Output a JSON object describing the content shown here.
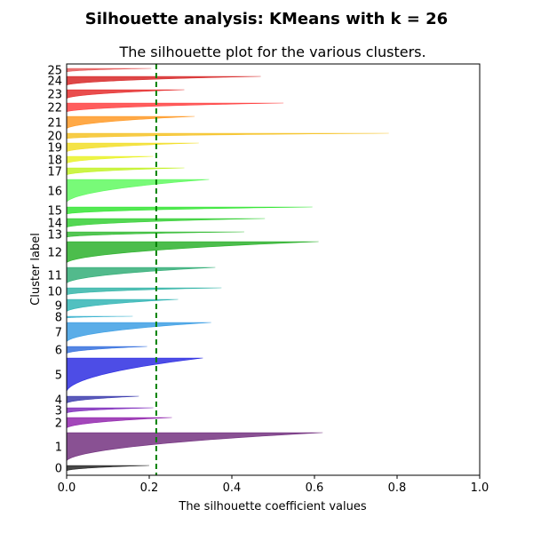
{
  "chart_data": {
    "type": "silhouette",
    "suptitle": "Silhouette analysis: KMeans with k = 26",
    "title": "The silhouette plot for the various clusters.",
    "xlabel": "The silhouette coefficient values",
    "ylabel": "Cluster label",
    "xlim": [
      0.0,
      1.0
    ],
    "x_ticks": [
      "0.0",
      "0.2",
      "0.4",
      "0.6",
      "0.8",
      "1.0"
    ],
    "average_silhouette": 0.217,
    "clusters": [
      {
        "label": "0",
        "max": 0.2,
        "size": 3,
        "color": "#000000"
      },
      {
        "label": "1",
        "max": 0.62,
        "size": 16,
        "color": "#5c0e6a"
      },
      {
        "label": "2",
        "max": 0.255,
        "size": 6,
        "color": "#8000a0"
      },
      {
        "label": "3",
        "max": 0.21,
        "size": 3,
        "color": "#6a0ab2"
      },
      {
        "label": "4",
        "max": 0.175,
        "size": 4,
        "color": "#1a1aa0"
      },
      {
        "label": "5",
        "max": 0.33,
        "size": 19,
        "color": "#0808dd"
      },
      {
        "label": "6",
        "max": 0.195,
        "size": 4,
        "color": "#1258d8"
      },
      {
        "label": "7",
        "max": 0.35,
        "size": 11,
        "color": "#1a8ddf"
      },
      {
        "label": "8",
        "max": 0.16,
        "size": 1,
        "color": "#1aa6c8"
      },
      {
        "label": "9",
        "max": 0.27,
        "size": 7,
        "color": "#0ea8a8"
      },
      {
        "label": "10",
        "max": 0.375,
        "size": 4,
        "color": "#10a89a"
      },
      {
        "label": "11",
        "max": 0.36,
        "size": 9,
        "color": "#0fa060"
      },
      {
        "label": "12",
        "max": 0.61,
        "size": 12,
        "color": "#07a307"
      },
      {
        "label": "13",
        "max": 0.43,
        "size": 3,
        "color": "#10b010"
      },
      {
        "label": "14",
        "max": 0.48,
        "size": 5,
        "color": "#10c810"
      },
      {
        "label": "15",
        "max": 0.595,
        "size": 4,
        "color": "#10e010"
      },
      {
        "label": "16",
        "max": 0.345,
        "size": 13,
        "color": "#44f844"
      },
      {
        "label": "17",
        "max": 0.285,
        "size": 4,
        "color": "#b8f000"
      },
      {
        "label": "18",
        "max": 0.21,
        "size": 4,
        "color": "#e6f000"
      },
      {
        "label": "19",
        "max": 0.32,
        "size": 5,
        "color": "#f0d800"
      },
      {
        "label": "20",
        "max": 0.78,
        "size": 3,
        "color": "#f4b800"
      },
      {
        "label": "21",
        "max": 0.31,
        "size": 7,
        "color": "#ff8800"
      },
      {
        "label": "22",
        "max": 0.525,
        "size": 5,
        "color": "#ff1e1e"
      },
      {
        "label": "23",
        "max": 0.285,
        "size": 5,
        "color": "#e00808"
      },
      {
        "label": "24",
        "max": 0.47,
        "size": 5,
        "color": "#d00000"
      },
      {
        "label": "25",
        "max": 0.205,
        "size": 2,
        "color": "#e04040"
      }
    ]
  }
}
